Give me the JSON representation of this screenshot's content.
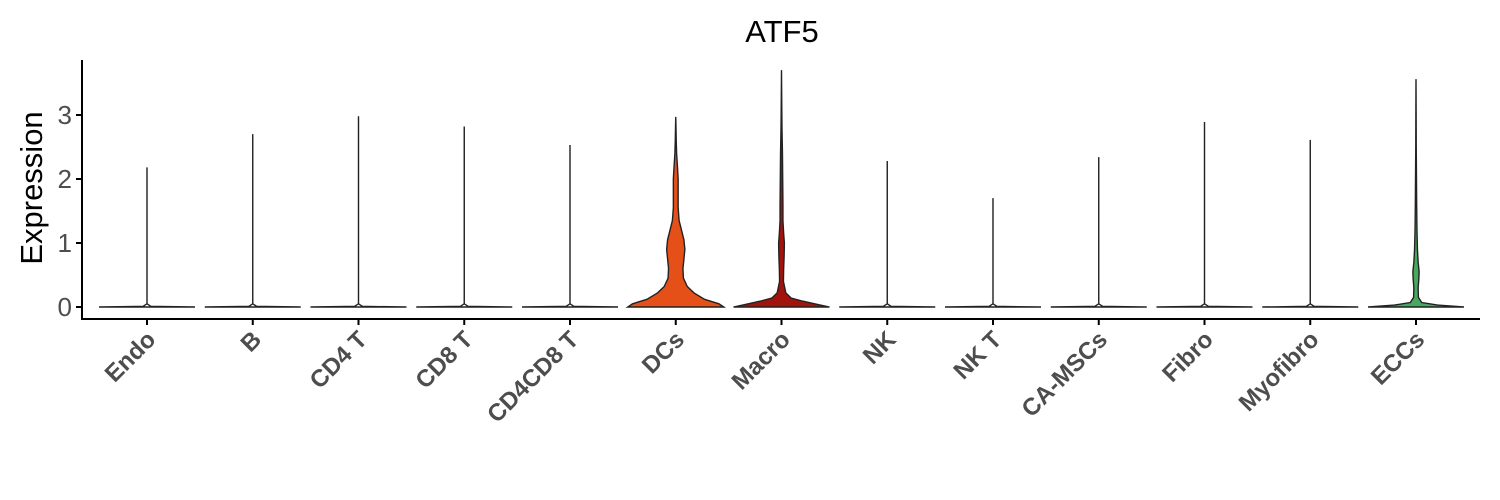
{
  "chart_data": {
    "type": "violin",
    "title": "ATF5",
    "xlabel": "",
    "ylabel": "Expression",
    "ylim": [
      -0.15,
      3.85
    ],
    "yticks": [
      0,
      1,
      2,
      3
    ],
    "grid": false,
    "legend": "none",
    "categories": [
      "Endo",
      "B",
      "CD4 T",
      "CD8 T",
      "CD4CD8 T",
      "DCs",
      "Macro",
      "NK",
      "NK T",
      "CA-MSCs",
      "Fibro",
      "Myofibro",
      "ECCs"
    ],
    "max_values": [
      2.17,
      2.69,
      2.97,
      2.81,
      2.52,
      2.96,
      3.69,
      2.27,
      1.69,
      2.33,
      2.88,
      2.6,
      3.55
    ],
    "fill_colors": [
      "#ffffff",
      "#ffffff",
      "#ffffff",
      "#ffffff",
      "#ffffff",
      "#e55019",
      "#a3130e",
      "#ffffff",
      "#ffffff",
      "#ffffff",
      "#ffffff",
      "#ffffff",
      "#49a860"
    ],
    "density_shapes": [
      [
        [
          0,
          1
        ],
        [
          0.01,
          0.08
        ],
        [
          0.05,
          0
        ],
        [
          2.17,
          0
        ]
      ],
      [
        [
          0,
          1
        ],
        [
          0.01,
          0.08
        ],
        [
          0.05,
          0
        ],
        [
          2.69,
          0
        ]
      ],
      [
        [
          0,
          1
        ],
        [
          0.01,
          0.08
        ],
        [
          0.05,
          0
        ],
        [
          2.97,
          0
        ]
      ],
      [
        [
          0,
          1
        ],
        [
          0.01,
          0.08
        ],
        [
          0.05,
          0
        ],
        [
          2.81,
          0
        ]
      ],
      [
        [
          0,
          1
        ],
        [
          0.01,
          0.08
        ],
        [
          0.05,
          0
        ],
        [
          2.52,
          0
        ]
      ],
      [
        [
          0,
          1
        ],
        [
          0.05,
          0.9
        ],
        [
          0.12,
          0.6
        ],
        [
          0.22,
          0.38
        ],
        [
          0.32,
          0.24
        ],
        [
          0.45,
          0.16
        ],
        [
          0.6,
          0.15
        ],
        [
          0.75,
          0.17
        ],
        [
          0.9,
          0.19
        ],
        [
          1.05,
          0.17
        ],
        [
          1.2,
          0.12
        ],
        [
          1.35,
          0.07
        ],
        [
          1.55,
          0.05
        ],
        [
          1.75,
          0.05
        ],
        [
          2.0,
          0.05
        ],
        [
          2.2,
          0.035
        ],
        [
          2.4,
          0.018
        ],
        [
          2.6,
          0.01
        ],
        [
          2.8,
          0.005
        ],
        [
          2.96,
          0
        ]
      ],
      [
        [
          0,
          1
        ],
        [
          0.04,
          0.75
        ],
        [
          0.09,
          0.45
        ],
        [
          0.14,
          0.2
        ],
        [
          0.22,
          0.09
        ],
        [
          0.4,
          0.04
        ],
        [
          0.6,
          0.045
        ],
        [
          0.8,
          0.055
        ],
        [
          1.0,
          0.06
        ],
        [
          1.15,
          0.045
        ],
        [
          1.35,
          0.03
        ],
        [
          1.6,
          0.03
        ],
        [
          2.0,
          0.025
        ],
        [
          2.4,
          0.02
        ],
        [
          2.8,
          0.01
        ],
        [
          3.2,
          0.005
        ],
        [
          3.69,
          0
        ]
      ],
      [
        [
          0,
          1
        ],
        [
          0.01,
          0.08
        ],
        [
          0.05,
          0
        ],
        [
          2.27,
          0
        ]
      ],
      [
        [
          0,
          1
        ],
        [
          0.01,
          0.08
        ],
        [
          0.05,
          0
        ],
        [
          1.69,
          0
        ]
      ],
      [
        [
          0,
          1
        ],
        [
          0.01,
          0.08
        ],
        [
          0.05,
          0
        ],
        [
          2.33,
          0
        ]
      ],
      [
        [
          0,
          1
        ],
        [
          0.01,
          0.08
        ],
        [
          0.05,
          0
        ],
        [
          2.88,
          0
        ]
      ],
      [
        [
          0,
          1
        ],
        [
          0.01,
          0.08
        ],
        [
          0.05,
          0
        ],
        [
          2.6,
          0
        ]
      ],
      [
        [
          0,
          1
        ],
        [
          0.03,
          0.45
        ],
        [
          0.07,
          0.12
        ],
        [
          0.15,
          0.05
        ],
        [
          0.3,
          0.045
        ],
        [
          0.45,
          0.06
        ],
        [
          0.55,
          0.065
        ],
        [
          0.7,
          0.045
        ],
        [
          0.9,
          0.03
        ],
        [
          1.2,
          0.02
        ],
        [
          1.6,
          0.014
        ],
        [
          2.0,
          0.01
        ],
        [
          2.5,
          0.005
        ],
        [
          3.0,
          0.003
        ],
        [
          3.55,
          0
        ]
      ]
    ]
  }
}
